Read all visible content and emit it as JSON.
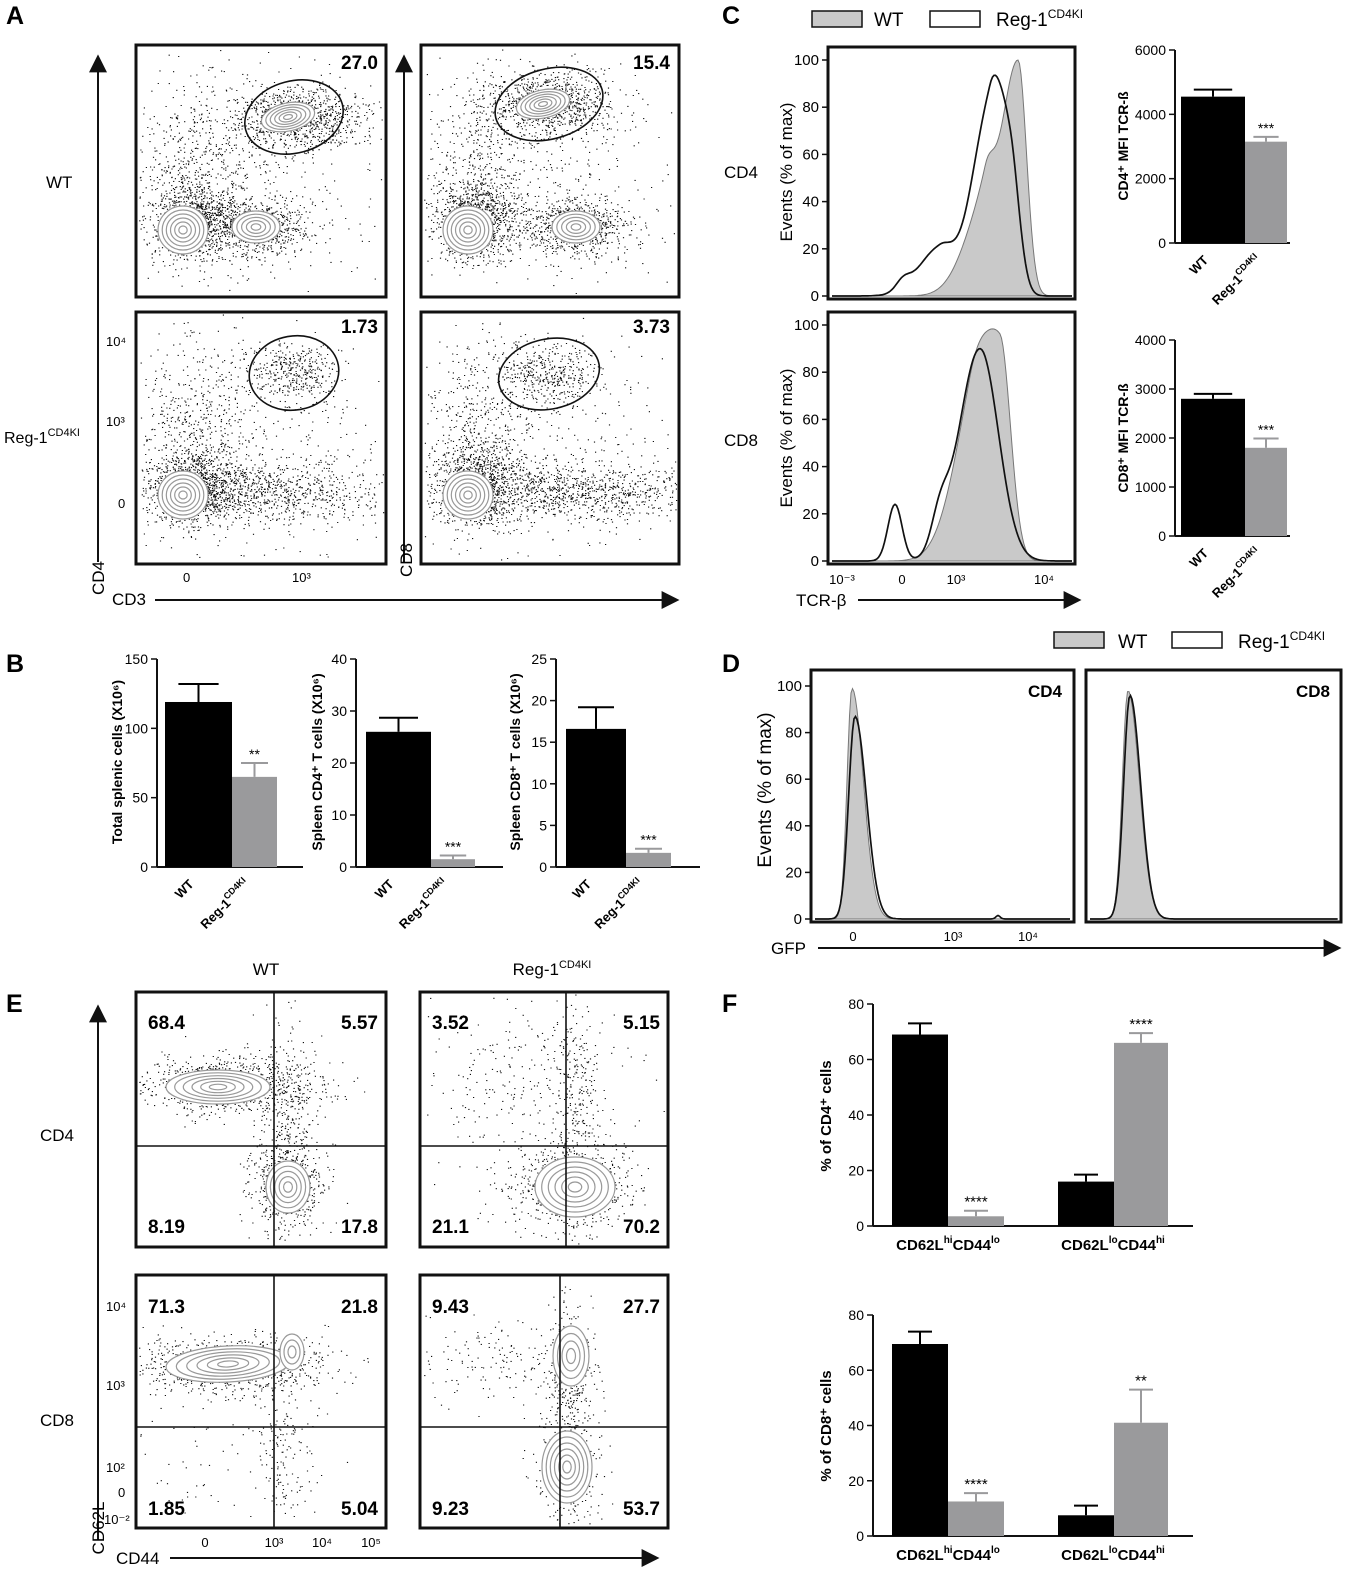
{
  "panel_letters": [
    "A",
    "B",
    "C",
    "D",
    "E",
    "F"
  ],
  "colors": {
    "wt_bar": "#000000",
    "ki_bar": "#9a9a9c",
    "wt_hist_fill": "#c9c9c9",
    "ki_hist_line": "#111111",
    "contour": "#999999"
  },
  "panelA": {
    "row_labels": [
      "WT",
      "Reg-1"
    ],
    "row_label_sup": "CD4KI",
    "xlabel": "CD3",
    "ylabel_left": "CD4",
    "ylabel_right": "CD8",
    "y_ticks": [
      "10⁴",
      "10³",
      "0"
    ],
    "x_ticks": [
      "0",
      "10³"
    ],
    "gate_values": [
      "27.0",
      "15.4",
      "1.73",
      "3.73"
    ]
  },
  "legend": {
    "wt": "WT",
    "ki": "Reg-1",
    "ki_sup": "CD4KI"
  },
  "panelC": {
    "row_labels": [
      "CD4",
      "CD8"
    ],
    "ylabel": "Events (% of max)",
    "xlabel": "TCR-β",
    "y_ticks": [
      "0",
      "20",
      "40",
      "60",
      "80",
      "100"
    ],
    "x_ticks": [
      "10⁻³",
      "0",
      "10³",
      "10⁴"
    ]
  },
  "panelD": {
    "ylabel": "Events (% of max)",
    "xlabel": "GFP",
    "y_ticks": [
      "0",
      "20",
      "40",
      "60",
      "80",
      "100"
    ],
    "x_ticks": [
      "0",
      "10³",
      "10⁴"
    ],
    "titles": [
      "CD4",
      "CD8"
    ]
  },
  "panelE": {
    "col_labels": [
      "WT",
      "Reg-1"
    ],
    "col_label_sup": "CD4KI",
    "row_labels": [
      "CD4",
      "CD8"
    ],
    "xlabel": "CD44",
    "ylabel": "CD62L",
    "y_ticks": [
      "10⁴",
      "10³",
      "10²",
      "0",
      "10⁻²"
    ],
    "x_ticks": [
      "0",
      "10³",
      "10⁴",
      "10⁵"
    ],
    "quadrants": [
      [
        "68.4",
        "5.57",
        "8.19",
        "17.8"
      ],
      [
        "3.52",
        "5.15",
        "21.1",
        "70.2"
      ],
      [
        "71.3",
        "21.8",
        "1.85",
        "5.04"
      ],
      [
        "9.43",
        "27.7",
        "9.23",
        "53.7"
      ]
    ]
  },
  "chart_data": [
    {
      "type": "bar",
      "panel": "B",
      "categories": [
        "WT",
        "Reg-1CD4KI"
      ],
      "values": [
        119,
        65
      ],
      "errors": [
        13,
        10
      ],
      "sig": [
        "",
        "**"
      ],
      "ylabel": "Total splenic cells (X10⁶)",
      "ylim": [
        0,
        150
      ],
      "yticks": [
        "0",
        "50",
        "100",
        "150"
      ]
    },
    {
      "type": "bar",
      "panel": "B",
      "categories": [
        "WT",
        "Reg-1CD4KI"
      ],
      "values": [
        26,
        1.5
      ],
      "errors": [
        2.7,
        0.7
      ],
      "sig": [
        "",
        "***"
      ],
      "ylabel": "Spleen CD4⁺ T cells (X10⁶)",
      "ylim": [
        0,
        40
      ],
      "yticks": [
        "0",
        "10",
        "20",
        "30",
        "40"
      ]
    },
    {
      "type": "bar",
      "panel": "B",
      "categories": [
        "WT",
        "Reg-1CD4KI"
      ],
      "values": [
        16.6,
        1.7
      ],
      "errors": [
        2.6,
        0.5
      ],
      "sig": [
        "",
        "***"
      ],
      "ylabel": "Spleen CD8⁺ T cells (X10⁶)",
      "ylim": [
        0,
        25
      ],
      "yticks": [
        "0",
        "5",
        "10",
        "15",
        "20",
        "25"
      ]
    },
    {
      "type": "bar",
      "panel": "C",
      "categories": [
        "WT",
        "Reg-1CD4KI"
      ],
      "values": [
        4550,
        3150
      ],
      "errors": [
        220,
        150
      ],
      "sig": [
        "",
        "***"
      ],
      "ylabel": "CD4⁺ MFI TCR-ß",
      "ylim": [
        0,
        6000
      ],
      "yticks": [
        "0",
        "2000",
        "4000",
        "6000"
      ]
    },
    {
      "type": "bar",
      "panel": "C",
      "categories": [
        "WT",
        "Reg-1CD4KI"
      ],
      "values": [
        2800,
        1800
      ],
      "errors": [
        100,
        190
      ],
      "sig": [
        "",
        "***"
      ],
      "ylabel": "CD8⁺ MFI TCR-ß",
      "ylim": [
        0,
        4000
      ],
      "yticks": [
        "0",
        "1000",
        "2000",
        "3000",
        "4000"
      ]
    },
    {
      "type": "bar",
      "panel": "F",
      "categories": [
        "CD62LhiCD44lo",
        "CD62LloCD44hi"
      ],
      "series": [
        {
          "values": [
            69,
            16
          ],
          "errors": [
            4,
            2.5
          ]
        },
        {
          "values": [
            3.5,
            66
          ],
          "errors": [
            2,
            3.5
          ]
        }
      ],
      "sig": [
        "****",
        "****"
      ],
      "ylabel": "% of CD4⁺ cells",
      "ylim": [
        0,
        80
      ],
      "yticks": [
        "0",
        "20",
        "40",
        "60",
        "80"
      ]
    },
    {
      "type": "bar",
      "panel": "F",
      "categories": [
        "CD62LhiCD44lo",
        "CD62LloCD44hi"
      ],
      "series": [
        {
          "values": [
            69.5,
            7.5
          ],
          "errors": [
            4.5,
            3.5
          ]
        },
        {
          "values": [
            12.5,
            41
          ],
          "errors": [
            3,
            12
          ]
        }
      ],
      "sig": [
        "****",
        "**"
      ],
      "ylabel": "% of CD8⁺ cells",
      "ylim": [
        0,
        80
      ],
      "yticks": [
        "0",
        "20",
        "40",
        "60",
        "80"
      ]
    }
  ]
}
